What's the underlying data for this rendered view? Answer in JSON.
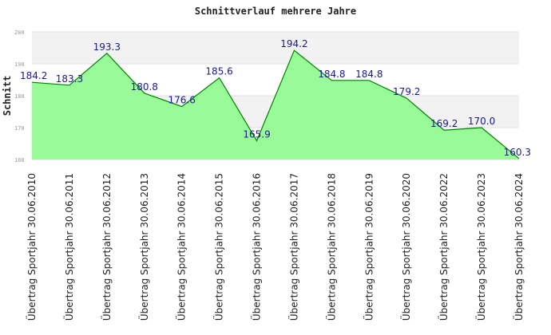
{
  "chart_data": {
    "type": "area",
    "title": "Schnittverlauf mehrere Jahre",
    "ylabel": "Schnitt",
    "xlabel": "",
    "ylim": [
      160,
      200
    ],
    "yticks": [
      160,
      170,
      180,
      190,
      200
    ],
    "grid": true,
    "categories": [
      "Übertrag Sportjahr 30.06.2010",
      "Übertrag Sportjahr 30.06.2011",
      "Übertrag Sportjahr 30.06.2012",
      "Übertrag Sportjahr 30.06.2013",
      "Übertrag Sportjahr 30.06.2014",
      "Übertrag Sportjahr 30.06.2015",
      "Übertrag Sportjahr 30.06.2016",
      "Übertrag Sportjahr 30.06.2017",
      "Übertrag Sportjahr 30.06.2018",
      "Übertrag Sportjahr 30.06.2019",
      "Übertrag Sportjahr 30.06.2020",
      "Übertrag Sportjahr 30.06.2022",
      "Übertrag Sportjahr 30.06.2023",
      "Übertrag Sportjahr 30.06.2024"
    ],
    "values": [
      184.2,
      183.3,
      193.3,
      180.8,
      176.6,
      185.6,
      165.9,
      194.2,
      184.8,
      184.8,
      179.2,
      169.2,
      170.0,
      160.3
    ],
    "data_labels": [
      "184.2",
      "183.3",
      "193.3",
      "180.8",
      "176.6",
      "185.6",
      "165.9",
      "194.2",
      "184.8",
      "184.8",
      "179.2",
      "169.2",
      "170.0",
      "160.3"
    ],
    "colors": {
      "fill": "#98fb98",
      "line": "#008000",
      "band": "#f2f2f2",
      "label": "#1a1a8c"
    }
  }
}
